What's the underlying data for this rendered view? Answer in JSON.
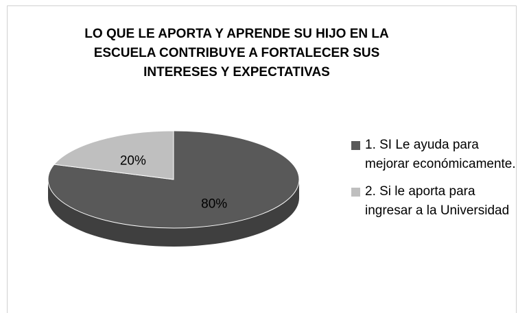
{
  "chart_data": {
    "type": "pie",
    "title": "LO QUE LE APORTA Y APRENDE SU HIJO  EN LA ESCUELA CONTRIBUYE A FORTALECER SUS INTERESES Y EXPECTATIVAS",
    "categories": [
      "1. SI Le ayuda para mejorar económicamente.",
      "2. Si le aporta  para ingresar a la Universidad"
    ],
    "values": [
      80,
      20
    ],
    "value_labels": [
      "80%",
      "20%"
    ],
    "colors": [
      "#595959",
      "#bfbfbf"
    ],
    "legend": "right"
  }
}
